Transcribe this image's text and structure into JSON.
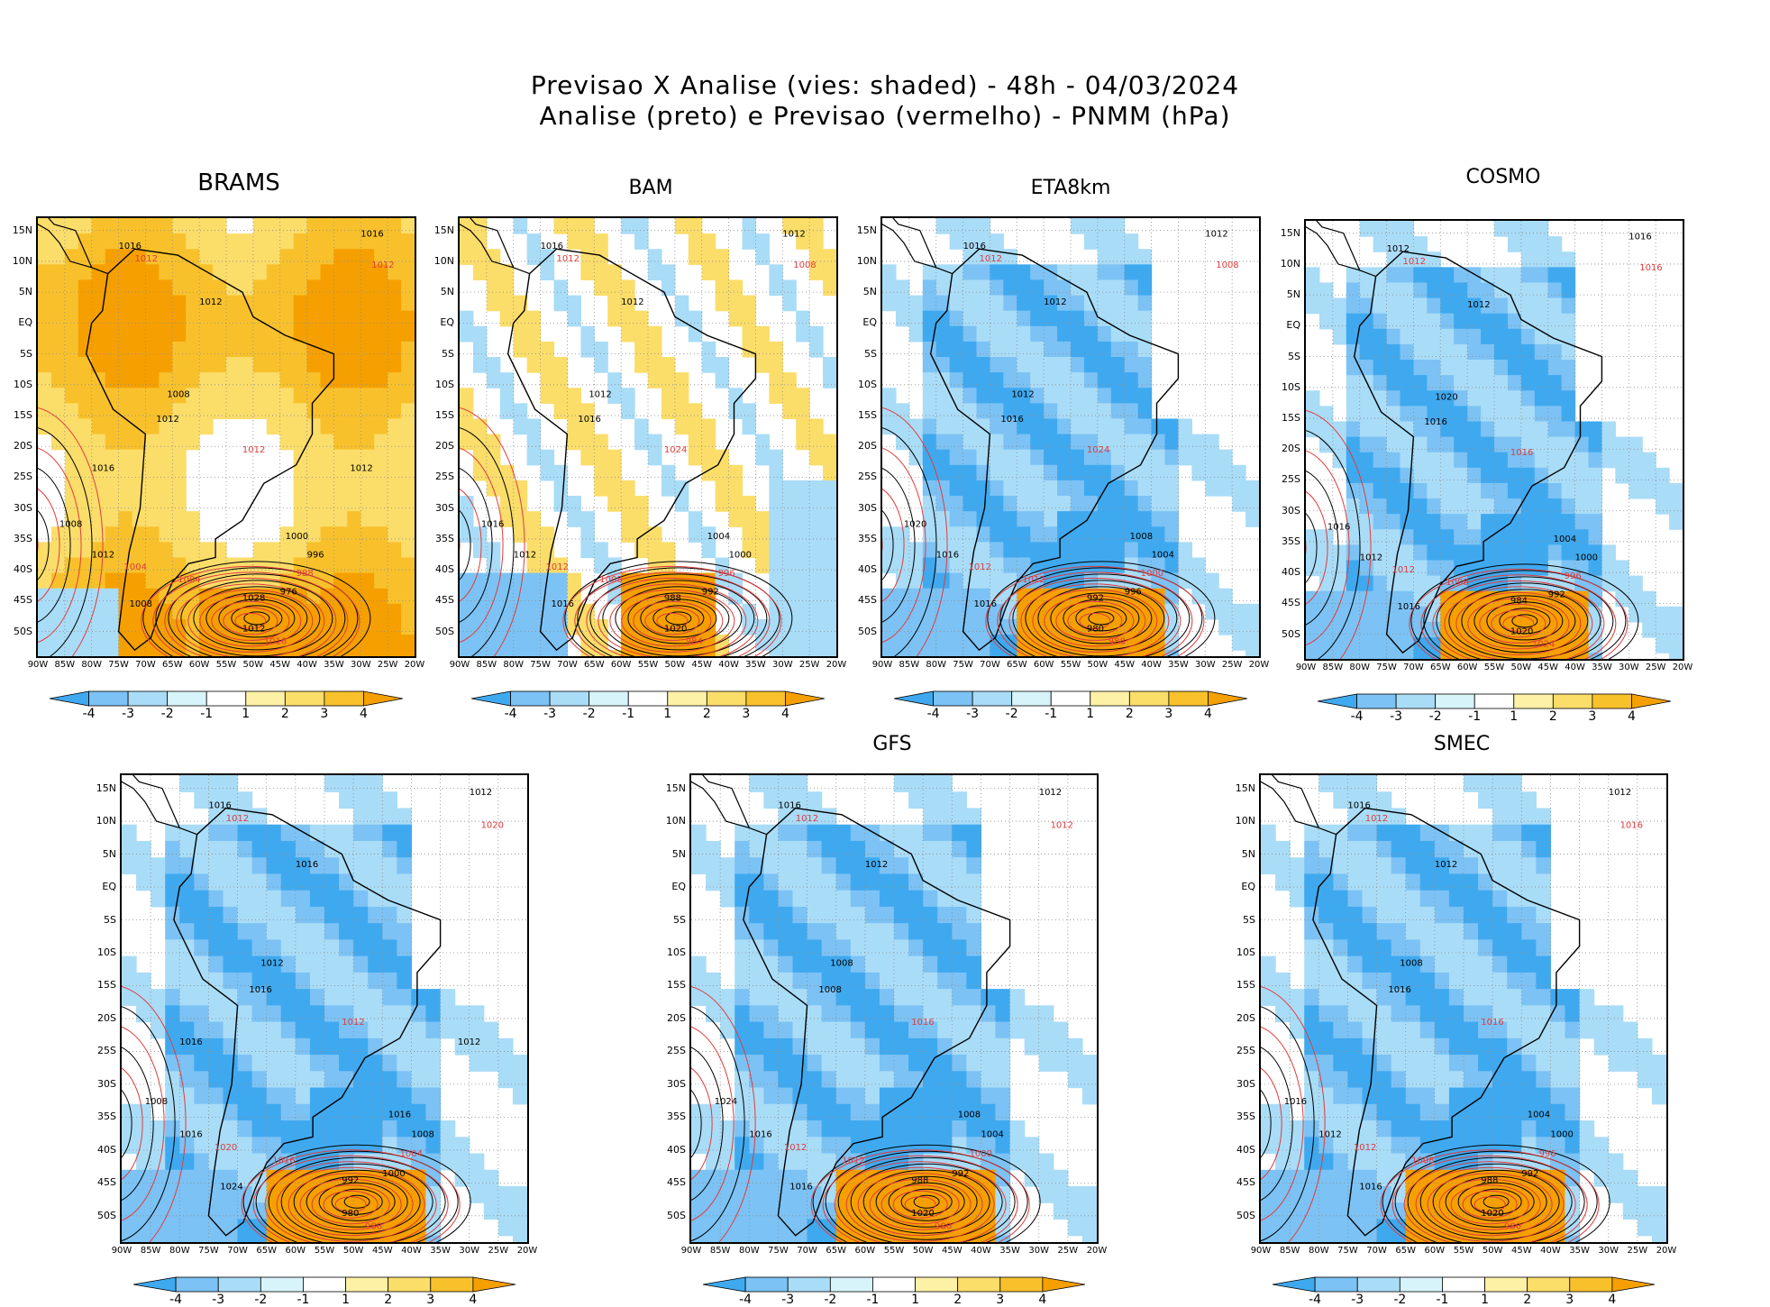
{
  "title": {
    "line1": "Previsao X Analise (vies: shaded) - 48h - 04/03/2024",
    "line2": "Analise (preto) e Previsao (vermelho) - PNMM (hPa)"
  },
  "colors": {
    "bias_neg4": "#3fa9f0",
    "bias_neg3": "#7cc2f4",
    "bias_neg2": "#a9dcf7",
    "bias_neg1": "#d8f4fb",
    "bias_zero": "#ffffff",
    "bias_pos1": "#fdf1a6",
    "bias_pos2": "#fbdd6a",
    "bias_pos3": "#f8c12c",
    "bias_pos4": "#f5a000",
    "analysis_contour": "#000000",
    "forecast_contour": "#e03c3c",
    "grid": "#8c8c8c"
  },
  "axes": {
    "lat_labels": [
      "15N",
      "10N",
      "5N",
      "EQ",
      "5S",
      "10S",
      "15S",
      "20S",
      "25S",
      "30S",
      "35S",
      "40S",
      "45S",
      "50S"
    ],
    "lon_labels": [
      "90W",
      "85W",
      "80W",
      "75W",
      "70W",
      "65W",
      "60W",
      "55W",
      "50W",
      "45W",
      "40W",
      "35W",
      "30W",
      "25W",
      "20W"
    ]
  },
  "colorbar": {
    "labels": [
      "-4",
      "-3",
      "-2",
      "-1",
      "1",
      "2",
      "3",
      "4"
    ]
  },
  "panels": [
    {
      "model": "BRAMS",
      "bias": "warm",
      "isobar_labels": [
        "1016",
        "1012",
        "1012",
        "1016",
        "1012",
        "1008",
        "1012",
        "1012",
        "1008",
        "1012",
        "1004",
        "1000",
        "996",
        "988",
        "976",
        "1028",
        "1016",
        "1012",
        "1008",
        "1004",
        "1016",
        "1012"
      ]
    },
    {
      "model": "BAM",
      "bias": "mixed",
      "isobar_labels": [
        "1016",
        "1012",
        "1012",
        "1012",
        "1008",
        "1012",
        "1016",
        "1024",
        "1016",
        "1012",
        "1008",
        "1004",
        "1000",
        "996",
        "992",
        "988",
        "984",
        "1020",
        "1016",
        "1012"
      ]
    },
    {
      "model": "ETA8km",
      "bias": "cold",
      "isobar_labels": [
        "1016",
        "1012",
        "1012",
        "1012",
        "1008",
        "1012",
        "1016",
        "1024",
        "1020",
        "1016",
        "1012",
        "1008",
        "1004",
        "1000",
        "996",
        "992",
        "988",
        "980",
        "1016",
        "1012"
      ]
    },
    {
      "model": "COSMO",
      "bias": "cold",
      "isobar_labels": [
        "1012",
        "1012",
        "1012",
        "1016",
        "1016",
        "1020",
        "1016",
        "1016",
        "1016",
        "1012",
        "1008",
        "1004",
        "1000",
        "996",
        "992",
        "984",
        "1024",
        "1020",
        "1016",
        "1012"
      ]
    },
    {
      "model": "",
      "bias": "cold",
      "isobar_labels": [
        "1016",
        "1012",
        "1016",
        "1012",
        "1020",
        "1012",
        "1016",
        "1012",
        "1008",
        "1016",
        "1016",
        "1016",
        "1008",
        "1004",
        "1000",
        "992",
        "988",
        "980",
        "1024",
        "1020",
        "1016",
        "1012"
      ]
    },
    {
      "model": "GFS",
      "bias": "cold",
      "isobar_labels": [
        "1016",
        "1012",
        "1012",
        "1012",
        "1012",
        "1008",
        "1008",
        "1016",
        "1024",
        "1016",
        "1012",
        "1008",
        "1004",
        "1000",
        "992",
        "988",
        "980",
        "1020",
        "1016",
        "1012"
      ]
    },
    {
      "model": "SMEC",
      "bias": "cold",
      "isobar_labels": [
        "1016",
        "1012",
        "1012",
        "1012",
        "1016",
        "1008",
        "1016",
        "1016",
        "1016",
        "1012",
        "1008",
        "1004",
        "1000",
        "996",
        "992",
        "988",
        "980",
        "1020",
        "1016",
        "1012"
      ]
    }
  ]
}
